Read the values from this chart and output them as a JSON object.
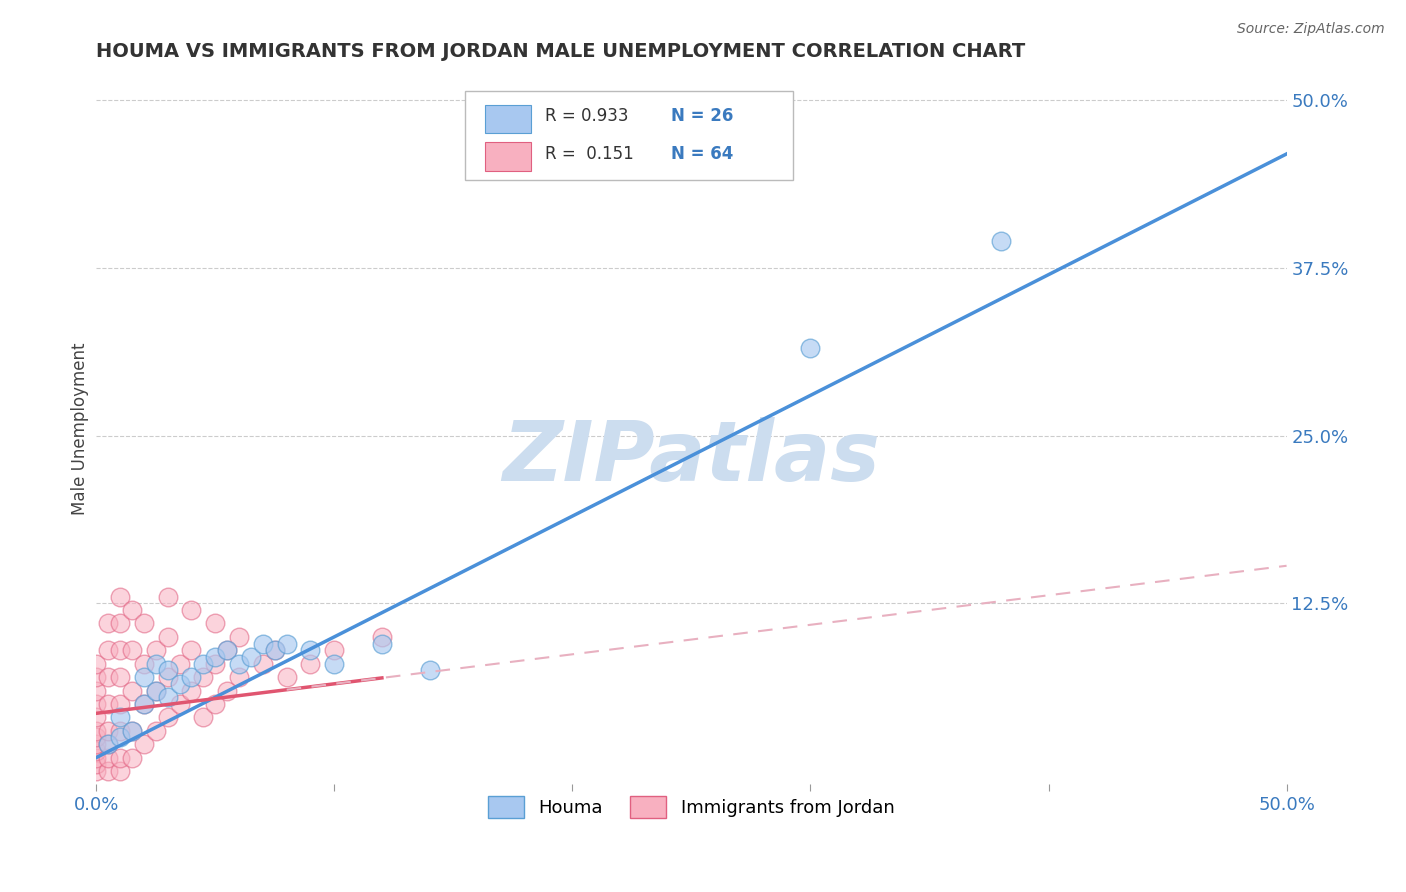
{
  "title": "HOUMA VS IMMIGRANTS FROM JORDAN MALE UNEMPLOYMENT CORRELATION CHART",
  "source": "Source: ZipAtlas.com",
  "ylabel": "Male Unemployment",
  "xlim": [
    0.0,
    0.5
  ],
  "ylim": [
    -0.01,
    0.52
  ],
  "houma_color": "#a8c8f0",
  "houma_edge": "#5a9fd4",
  "jordan_color": "#f8b0c0",
  "jordan_edge": "#e06080",
  "trendline_houma_color": "#4a90d9",
  "trendline_jordan_solid_color": "#e05570",
  "trendline_jordan_dash_color": "#e8b0c0",
  "watermark": "ZIPatlas",
  "watermark_color": "#ccddef",
  "background_color": "#ffffff",
  "grid_color": "#cccccc",
  "houma_points": [
    [
      0.005,
      0.02
    ],
    [
      0.01,
      0.025
    ],
    [
      0.01,
      0.04
    ],
    [
      0.015,
      0.03
    ],
    [
      0.02,
      0.05
    ],
    [
      0.02,
      0.07
    ],
    [
      0.025,
      0.06
    ],
    [
      0.025,
      0.08
    ],
    [
      0.03,
      0.055
    ],
    [
      0.03,
      0.075
    ],
    [
      0.035,
      0.065
    ],
    [
      0.04,
      0.07
    ],
    [
      0.045,
      0.08
    ],
    [
      0.05,
      0.085
    ],
    [
      0.055,
      0.09
    ],
    [
      0.06,
      0.08
    ],
    [
      0.065,
      0.085
    ],
    [
      0.07,
      0.095
    ],
    [
      0.075,
      0.09
    ],
    [
      0.08,
      0.095
    ],
    [
      0.09,
      0.09
    ],
    [
      0.1,
      0.08
    ],
    [
      0.12,
      0.095
    ],
    [
      0.14,
      0.075
    ],
    [
      0.3,
      0.315
    ],
    [
      0.38,
      0.395
    ]
  ],
  "jordan_points": [
    [
      0.0,
      0.0
    ],
    [
      0.0,
      0.005
    ],
    [
      0.0,
      0.01
    ],
    [
      0.0,
      0.015
    ],
    [
      0.0,
      0.02
    ],
    [
      0.0,
      0.025
    ],
    [
      0.0,
      0.03
    ],
    [
      0.0,
      0.04
    ],
    [
      0.0,
      0.05
    ],
    [
      0.0,
      0.06
    ],
    [
      0.0,
      0.07
    ],
    [
      0.0,
      0.08
    ],
    [
      0.005,
      0.0
    ],
    [
      0.005,
      0.01
    ],
    [
      0.005,
      0.02
    ],
    [
      0.005,
      0.03
    ],
    [
      0.005,
      0.05
    ],
    [
      0.005,
      0.07
    ],
    [
      0.005,
      0.09
    ],
    [
      0.005,
      0.11
    ],
    [
      0.01,
      0.0
    ],
    [
      0.01,
      0.01
    ],
    [
      0.01,
      0.03
    ],
    [
      0.01,
      0.05
    ],
    [
      0.01,
      0.07
    ],
    [
      0.01,
      0.09
    ],
    [
      0.01,
      0.11
    ],
    [
      0.01,
      0.13
    ],
    [
      0.015,
      0.01
    ],
    [
      0.015,
      0.03
    ],
    [
      0.015,
      0.06
    ],
    [
      0.015,
      0.09
    ],
    [
      0.015,
      0.12
    ],
    [
      0.02,
      0.02
    ],
    [
      0.02,
      0.05
    ],
    [
      0.02,
      0.08
    ],
    [
      0.02,
      0.11
    ],
    [
      0.025,
      0.03
    ],
    [
      0.025,
      0.06
    ],
    [
      0.025,
      0.09
    ],
    [
      0.03,
      0.04
    ],
    [
      0.03,
      0.07
    ],
    [
      0.03,
      0.1
    ],
    [
      0.03,
      0.13
    ],
    [
      0.035,
      0.05
    ],
    [
      0.035,
      0.08
    ],
    [
      0.04,
      0.06
    ],
    [
      0.04,
      0.09
    ],
    [
      0.04,
      0.12
    ],
    [
      0.045,
      0.04
    ],
    [
      0.045,
      0.07
    ],
    [
      0.05,
      0.05
    ],
    [
      0.05,
      0.08
    ],
    [
      0.05,
      0.11
    ],
    [
      0.055,
      0.06
    ],
    [
      0.055,
      0.09
    ],
    [
      0.06,
      0.07
    ],
    [
      0.06,
      0.1
    ],
    [
      0.07,
      0.08
    ],
    [
      0.075,
      0.09
    ],
    [
      0.08,
      0.07
    ],
    [
      0.09,
      0.08
    ],
    [
      0.1,
      0.09
    ],
    [
      0.12,
      0.1
    ]
  ],
  "legend_label1": "Houma",
  "legend_label2": "Immigrants from Jordan"
}
